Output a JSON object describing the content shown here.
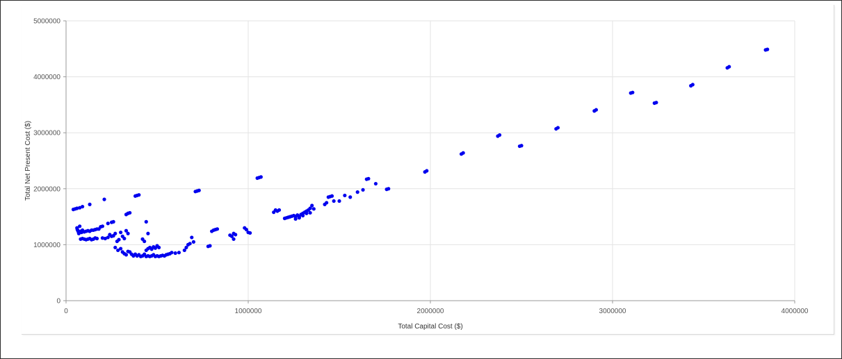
{
  "chart_data": {
    "type": "scatter",
    "xlabel": "Total Capital Cost ($)",
    "ylabel": "Total Net Present Cost ($)",
    "xlim": [
      0,
      4000000
    ],
    "ylim": [
      0,
      5000000
    ],
    "x_ticks": [
      "0",
      "1000000",
      "2000000",
      "3000000",
      "4000000"
    ],
    "y_ticks": [
      "0",
      "1000000",
      "2000000",
      "3000000",
      "4000000",
      "5000000"
    ],
    "grid": true,
    "point_color": "#0000ee",
    "points": [
      [
        40000,
        1630000
      ],
      [
        50000,
        1640000
      ],
      [
        60000,
        1650000
      ],
      [
        75000,
        1660000
      ],
      [
        90000,
        1680000
      ],
      [
        130000,
        1720000
      ],
      [
        210000,
        1810000
      ],
      [
        60000,
        1300000
      ],
      [
        62000,
        1270000
      ],
      [
        65000,
        1250000
      ],
      [
        68000,
        1230000
      ],
      [
        70000,
        1200000
      ],
      [
        75000,
        1330000
      ],
      [
        80000,
        1240000
      ],
      [
        85000,
        1220000
      ],
      [
        90000,
        1260000
      ],
      [
        100000,
        1230000
      ],
      [
        110000,
        1240000
      ],
      [
        120000,
        1250000
      ],
      [
        130000,
        1240000
      ],
      [
        140000,
        1260000
      ],
      [
        150000,
        1260000
      ],
      [
        160000,
        1270000
      ],
      [
        170000,
        1280000
      ],
      [
        180000,
        1280000
      ],
      [
        190000,
        1320000
      ],
      [
        200000,
        1330000
      ],
      [
        80000,
        1100000
      ],
      [
        90000,
        1110000
      ],
      [
        100000,
        1100000
      ],
      [
        110000,
        1090000
      ],
      [
        120000,
        1100000
      ],
      [
        130000,
        1110000
      ],
      [
        140000,
        1090000
      ],
      [
        150000,
        1100000
      ],
      [
        160000,
        1120000
      ],
      [
        170000,
        1110000
      ],
      [
        200000,
        1120000
      ],
      [
        215000,
        1110000
      ],
      [
        230000,
        1130000
      ],
      [
        230000,
        1380000
      ],
      [
        250000,
        1400000
      ],
      [
        260000,
        1410000
      ],
      [
        240000,
        1180000
      ],
      [
        250000,
        1150000
      ],
      [
        260000,
        1160000
      ],
      [
        270000,
        1200000
      ],
      [
        280000,
        1060000
      ],
      [
        290000,
        1090000
      ],
      [
        300000,
        1220000
      ],
      [
        310000,
        1150000
      ],
      [
        320000,
        1110000
      ],
      [
        330000,
        1250000
      ],
      [
        340000,
        1200000
      ],
      [
        330000,
        1540000
      ],
      [
        340000,
        1560000
      ],
      [
        350000,
        1570000
      ],
      [
        380000,
        1870000
      ],
      [
        390000,
        1880000
      ],
      [
        400000,
        1890000
      ],
      [
        270000,
        950000
      ],
      [
        285000,
        900000
      ],
      [
        300000,
        930000
      ],
      [
        310000,
        870000
      ],
      [
        320000,
        840000
      ],
      [
        330000,
        820000
      ],
      [
        340000,
        880000
      ],
      [
        350000,
        870000
      ],
      [
        360000,
        830000
      ],
      [
        370000,
        800000
      ],
      [
        380000,
        830000
      ],
      [
        390000,
        800000
      ],
      [
        400000,
        820000
      ],
      [
        410000,
        790000
      ],
      [
        420000,
        800000
      ],
      [
        430000,
        830000
      ],
      [
        440000,
        790000
      ],
      [
        450000,
        800000
      ],
      [
        460000,
        790000
      ],
      [
        470000,
        800000
      ],
      [
        480000,
        820000
      ],
      [
        490000,
        790000
      ],
      [
        500000,
        800000
      ],
      [
        510000,
        790000
      ],
      [
        520000,
        800000
      ],
      [
        530000,
        810000
      ],
      [
        540000,
        800000
      ],
      [
        550000,
        820000
      ],
      [
        560000,
        830000
      ],
      [
        570000,
        840000
      ],
      [
        580000,
        860000
      ],
      [
        600000,
        850000
      ],
      [
        620000,
        860000
      ],
      [
        440000,
        900000
      ],
      [
        450000,
        930000
      ],
      [
        460000,
        950000
      ],
      [
        470000,
        920000
      ],
      [
        480000,
        960000
      ],
      [
        490000,
        940000
      ],
      [
        500000,
        980000
      ],
      [
        510000,
        950000
      ],
      [
        440000,
        1410000
      ],
      [
        450000,
        1200000
      ],
      [
        420000,
        1100000
      ],
      [
        430000,
        1060000
      ],
      [
        650000,
        900000
      ],
      [
        660000,
        950000
      ],
      [
        670000,
        1000000
      ],
      [
        680000,
        1020000
      ],
      [
        700000,
        1050000
      ],
      [
        690000,
        1130000
      ],
      [
        710000,
        1950000
      ],
      [
        720000,
        1960000
      ],
      [
        730000,
        1970000
      ],
      [
        780000,
        970000
      ],
      [
        790000,
        980000
      ],
      [
        800000,
        1240000
      ],
      [
        810000,
        1260000
      ],
      [
        820000,
        1270000
      ],
      [
        830000,
        1280000
      ],
      [
        900000,
        1170000
      ],
      [
        910000,
        1150000
      ],
      [
        920000,
        1100000
      ],
      [
        930000,
        1180000
      ],
      [
        920000,
        1200000
      ],
      [
        980000,
        1300000
      ],
      [
        990000,
        1270000
      ],
      [
        1000000,
        1220000
      ],
      [
        1010000,
        1210000
      ],
      [
        1050000,
        2190000
      ],
      [
        1060000,
        2200000
      ],
      [
        1070000,
        2210000
      ],
      [
        1140000,
        1580000
      ],
      [
        1150000,
        1620000
      ],
      [
        1160000,
        1600000
      ],
      [
        1170000,
        1620000
      ],
      [
        1200000,
        1470000
      ],
      [
        1210000,
        1480000
      ],
      [
        1220000,
        1490000
      ],
      [
        1230000,
        1500000
      ],
      [
        1240000,
        1510000
      ],
      [
        1250000,
        1520000
      ],
      [
        1260000,
        1460000
      ],
      [
        1270000,
        1530000
      ],
      [
        1280000,
        1500000
      ],
      [
        1290000,
        1540000
      ],
      [
        1300000,
        1560000
      ],
      [
        1310000,
        1580000
      ],
      [
        1320000,
        1600000
      ],
      [
        1330000,
        1620000
      ],
      [
        1340000,
        1650000
      ],
      [
        1350000,
        1700000
      ],
      [
        1360000,
        1640000
      ],
      [
        1260000,
        1500000
      ],
      [
        1280000,
        1480000
      ],
      [
        1300000,
        1520000
      ],
      [
        1320000,
        1560000
      ],
      [
        1340000,
        1570000
      ],
      [
        1420000,
        1720000
      ],
      [
        1430000,
        1750000
      ],
      [
        1440000,
        1850000
      ],
      [
        1450000,
        1860000
      ],
      [
        1460000,
        1870000
      ],
      [
        1470000,
        1780000
      ],
      [
        1500000,
        1780000
      ],
      [
        1530000,
        1880000
      ],
      [
        1560000,
        1850000
      ],
      [
        1600000,
        1940000
      ],
      [
        1630000,
        1980000
      ],
      [
        1650000,
        2170000
      ],
      [
        1660000,
        2180000
      ],
      [
        1700000,
        2090000
      ],
      [
        1760000,
        1990000
      ],
      [
        1770000,
        2000000
      ],
      [
        1970000,
        2300000
      ],
      [
        1980000,
        2320000
      ],
      [
        2170000,
        2620000
      ],
      [
        2180000,
        2640000
      ],
      [
        2370000,
        2940000
      ],
      [
        2380000,
        2960000
      ],
      [
        2490000,
        2760000
      ],
      [
        2500000,
        2770000
      ],
      [
        2690000,
        3070000
      ],
      [
        2700000,
        3090000
      ],
      [
        2900000,
        3390000
      ],
      [
        2910000,
        3410000
      ],
      [
        3100000,
        3710000
      ],
      [
        3110000,
        3720000
      ],
      [
        3230000,
        3530000
      ],
      [
        3240000,
        3540000
      ],
      [
        3430000,
        3840000
      ],
      [
        3440000,
        3860000
      ],
      [
        3630000,
        4160000
      ],
      [
        3640000,
        4180000
      ],
      [
        3840000,
        4480000
      ],
      [
        3850000,
        4490000
      ]
    ]
  }
}
